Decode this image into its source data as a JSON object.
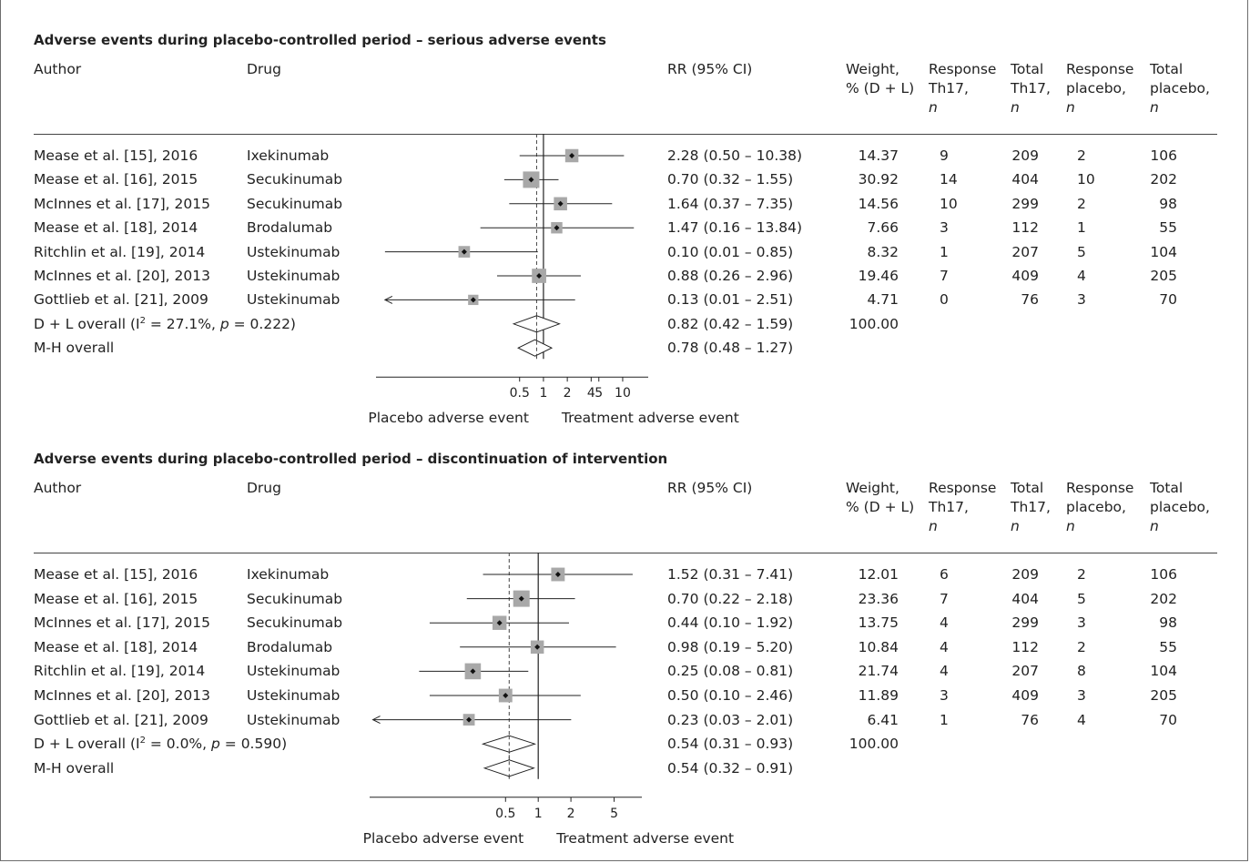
{
  "chart_data": [
    {
      "type": "forest",
      "title": "Adverse events during placebo-controlled period – serious adverse events",
      "columns": {
        "author": "Author",
        "drug": "Drug",
        "rr": "RR (95% CI)",
        "weight": [
          "Weight,",
          "% (D + L)"
        ],
        "resp_th17": [
          "Response",
          "Th17,",
          "n"
        ],
        "total_th17": [
          "Total",
          "Th17,",
          "n"
        ],
        "resp_placebo": [
          "Response",
          "placebo,",
          "n"
        ],
        "total_placebo": [
          "Total",
          "placebo,",
          "n"
        ]
      },
      "x_scale": "log",
      "xlim": [
        0.0075,
        21
      ],
      "ticks": [
        0.5,
        1,
        2,
        4,
        5,
        10
      ],
      "tick_labels": [
        "0.5",
        "1",
        "2",
        "4",
        "5",
        "10"
      ],
      "left_label": "Placebo adverse event",
      "right_label": "Treatment adverse event",
      "studies": [
        {
          "author": "Mease et al. [15], 2016",
          "drug": "Ixekinumab",
          "rr": 2.28,
          "lo": 0.5,
          "hi": 10.38,
          "rr_text": "2.28 (0.50 – 10.38)",
          "weight": "14.37",
          "resp_th17": "9",
          "total_th17": "209",
          "resp_placebo": "2",
          "total_placebo": "106",
          "arrow_left": false
        },
        {
          "author": "Mease et al. [16], 2015",
          "drug": "Secukinumab",
          "rr": 0.7,
          "lo": 0.32,
          "hi": 1.55,
          "rr_text": "0.70 (0.32 – 1.55)",
          "weight": "30.92",
          "resp_th17": "14",
          "total_th17": "404",
          "resp_placebo": "10",
          "total_placebo": "202",
          "arrow_left": false
        },
        {
          "author": "McInnes et al. [17], 2015",
          "drug": "Secukinumab",
          "rr": 1.64,
          "lo": 0.37,
          "hi": 7.35,
          "rr_text": "1.64 (0.37 – 7.35)",
          "weight": "14.56",
          "resp_th17": "10",
          "total_th17": "299",
          "resp_placebo": "2",
          "total_placebo": "98",
          "arrow_left": false
        },
        {
          "author": "Mease et al. [18], 2014",
          "drug": "Brodalumab",
          "rr": 1.47,
          "lo": 0.16,
          "hi": 13.84,
          "rr_text": "1.47 (0.16 – 13.84)",
          "weight": "7.66",
          "resp_th17": "3",
          "total_th17": "112",
          "resp_placebo": "1",
          "total_placebo": "55",
          "arrow_left": false
        },
        {
          "author": "Ritchlin et al. [19], 2014",
          "drug": "Ustekinumab",
          "rr": 0.1,
          "lo": 0.01,
          "hi": 0.85,
          "rr_text": "0.10 (0.01 – 0.85)",
          "weight": "8.32",
          "resp_th17": "1",
          "total_th17": "207",
          "resp_placebo": "5",
          "total_placebo": "104",
          "arrow_left": false
        },
        {
          "author": "McInnes et al. [20], 2013",
          "drug": "Ustekinumab",
          "rr": 0.88,
          "lo": 0.26,
          "hi": 2.96,
          "rr_text": "0.88 (0.26 – 2.96)",
          "weight": "19.46",
          "resp_th17": "7",
          "total_th17": "409",
          "resp_placebo": "4",
          "total_placebo": "205",
          "arrow_left": false
        },
        {
          "author": "Gottlieb et al. [21], 2009",
          "drug": "Ustekinumab",
          "rr": 0.13,
          "lo": 0.01,
          "hi": 2.51,
          "rr_text": "0.13 (0.01 – 2.51)",
          "weight": "4.71",
          "resp_th17": "0",
          "total_th17": "76",
          "resp_placebo": "3",
          "total_placebo": "70",
          "arrow_left": true
        }
      ],
      "overall": [
        {
          "label_pre": "D + L overall (I",
          "sup": "2",
          "label_mid": " = 27.1%, ",
          "p_italic": "p",
          "label_post": " = 0.222)",
          "rr": 0.82,
          "lo": 0.42,
          "hi": 1.59,
          "rr_text": "0.82 (0.42 – 1.59)",
          "weight": "100.00"
        },
        {
          "label_pre": "M-H overall",
          "sup": "",
          "label_mid": "",
          "p_italic": "",
          "label_post": "",
          "rr": 0.78,
          "lo": 0.48,
          "hi": 1.27,
          "rr_text": "0.78 (0.48 – 1.27)",
          "weight": ""
        }
      ]
    },
    {
      "type": "forest",
      "title": "Adverse events during placebo-controlled period – discontinuation of intervention",
      "columns": {
        "author": "Author",
        "drug": "Drug",
        "rr": "RR (95% CI)",
        "weight": [
          "Weight,",
          "% (D + L)"
        ],
        "resp_th17": [
          "Response",
          "Th17,",
          "n"
        ],
        "total_th17": [
          "Total",
          "Th17,",
          "n"
        ],
        "resp_placebo": [
          "Response",
          "placebo,",
          "n"
        ],
        "total_placebo": [
          "Total",
          "placebo,",
          "n"
        ]
      },
      "x_scale": "log",
      "xlim": [
        0.028,
        9
      ],
      "ticks": [
        0.5,
        1,
        2,
        5
      ],
      "tick_labels": [
        "0.5",
        "1",
        "2",
        "5"
      ],
      "left_label": "Placebo adverse event",
      "right_label": "Treatment adverse event",
      "studies": [
        {
          "author": "Mease et al. [15], 2016",
          "drug": "Ixekinumab",
          "rr": 1.52,
          "lo": 0.31,
          "hi": 7.41,
          "rr_text": "1.52 (0.31 – 7.41)",
          "weight": "12.01",
          "resp_th17": "6",
          "total_th17": "209",
          "resp_placebo": "2",
          "total_placebo": "106",
          "arrow_left": false
        },
        {
          "author": "Mease et al. [16], 2015",
          "drug": "Secukinumab",
          "rr": 0.7,
          "lo": 0.22,
          "hi": 2.18,
          "rr_text": "0.70 (0.22 – 2.18)",
          "weight": "23.36",
          "resp_th17": "7",
          "total_th17": "404",
          "resp_placebo": "5",
          "total_placebo": "202",
          "arrow_left": false
        },
        {
          "author": "McInnes et al. [17], 2015",
          "drug": "Secukinumab",
          "rr": 0.44,
          "lo": 0.1,
          "hi": 1.92,
          "rr_text": "0.44 (0.10 – 1.92)",
          "weight": "13.75",
          "resp_th17": "4",
          "total_th17": "299",
          "resp_placebo": "3",
          "total_placebo": "98",
          "arrow_left": false
        },
        {
          "author": "Mease et al. [18], 2014",
          "drug": "Brodalumab",
          "rr": 0.98,
          "lo": 0.19,
          "hi": 5.2,
          "rr_text": "0.98 (0.19 – 5.20)",
          "weight": "10.84",
          "resp_th17": "4",
          "total_th17": "112",
          "resp_placebo": "2",
          "total_placebo": "55",
          "arrow_left": false
        },
        {
          "author": "Ritchlin et al. [19], 2014",
          "drug": "Ustekinumab",
          "rr": 0.25,
          "lo": 0.08,
          "hi": 0.81,
          "rr_text": "0.25 (0.08 – 0.81)",
          "weight": "21.74",
          "resp_th17": "4",
          "total_th17": "207",
          "resp_placebo": "8",
          "total_placebo": "104",
          "arrow_left": false
        },
        {
          "author": "McInnes et al. [20], 2013",
          "drug": "Ustekinumab",
          "rr": 0.5,
          "lo": 0.1,
          "hi": 2.46,
          "rr_text": "0.50 (0.10 – 2.46)",
          "weight": "11.89",
          "resp_th17": "3",
          "total_th17": "409",
          "resp_placebo": "3",
          "total_placebo": "205",
          "arrow_left": false
        },
        {
          "author": "Gottlieb et al. [21], 2009",
          "drug": "Ustekinumab",
          "rr": 0.23,
          "lo": 0.03,
          "hi": 2.01,
          "rr_text": "0.23 (0.03 – 2.01)",
          "weight": "6.41",
          "resp_th17": "1",
          "total_th17": "76",
          "resp_placebo": "4",
          "total_placebo": "70",
          "arrow_left": true
        }
      ],
      "overall": [
        {
          "label_pre": "D + L overall (I",
          "sup": "2",
          "label_mid": " = 0.0%, ",
          "p_italic": "p",
          "label_post": " = 0.590)",
          "rr": 0.54,
          "lo": 0.31,
          "hi": 0.93,
          "rr_text": "0.54 (0.31 – 0.93)",
          "weight": "100.00"
        },
        {
          "label_pre": "M-H overall",
          "sup": "",
          "label_mid": "",
          "p_italic": "",
          "label_post": "",
          "rr": 0.54,
          "lo": 0.32,
          "hi": 0.91,
          "rr_text": "0.54 (0.32 – 0.91)",
          "weight": ""
        }
      ]
    }
  ],
  "colors": {
    "marker_box": "#a8a8a8",
    "line": "#222222",
    "dashed": "#444444"
  }
}
